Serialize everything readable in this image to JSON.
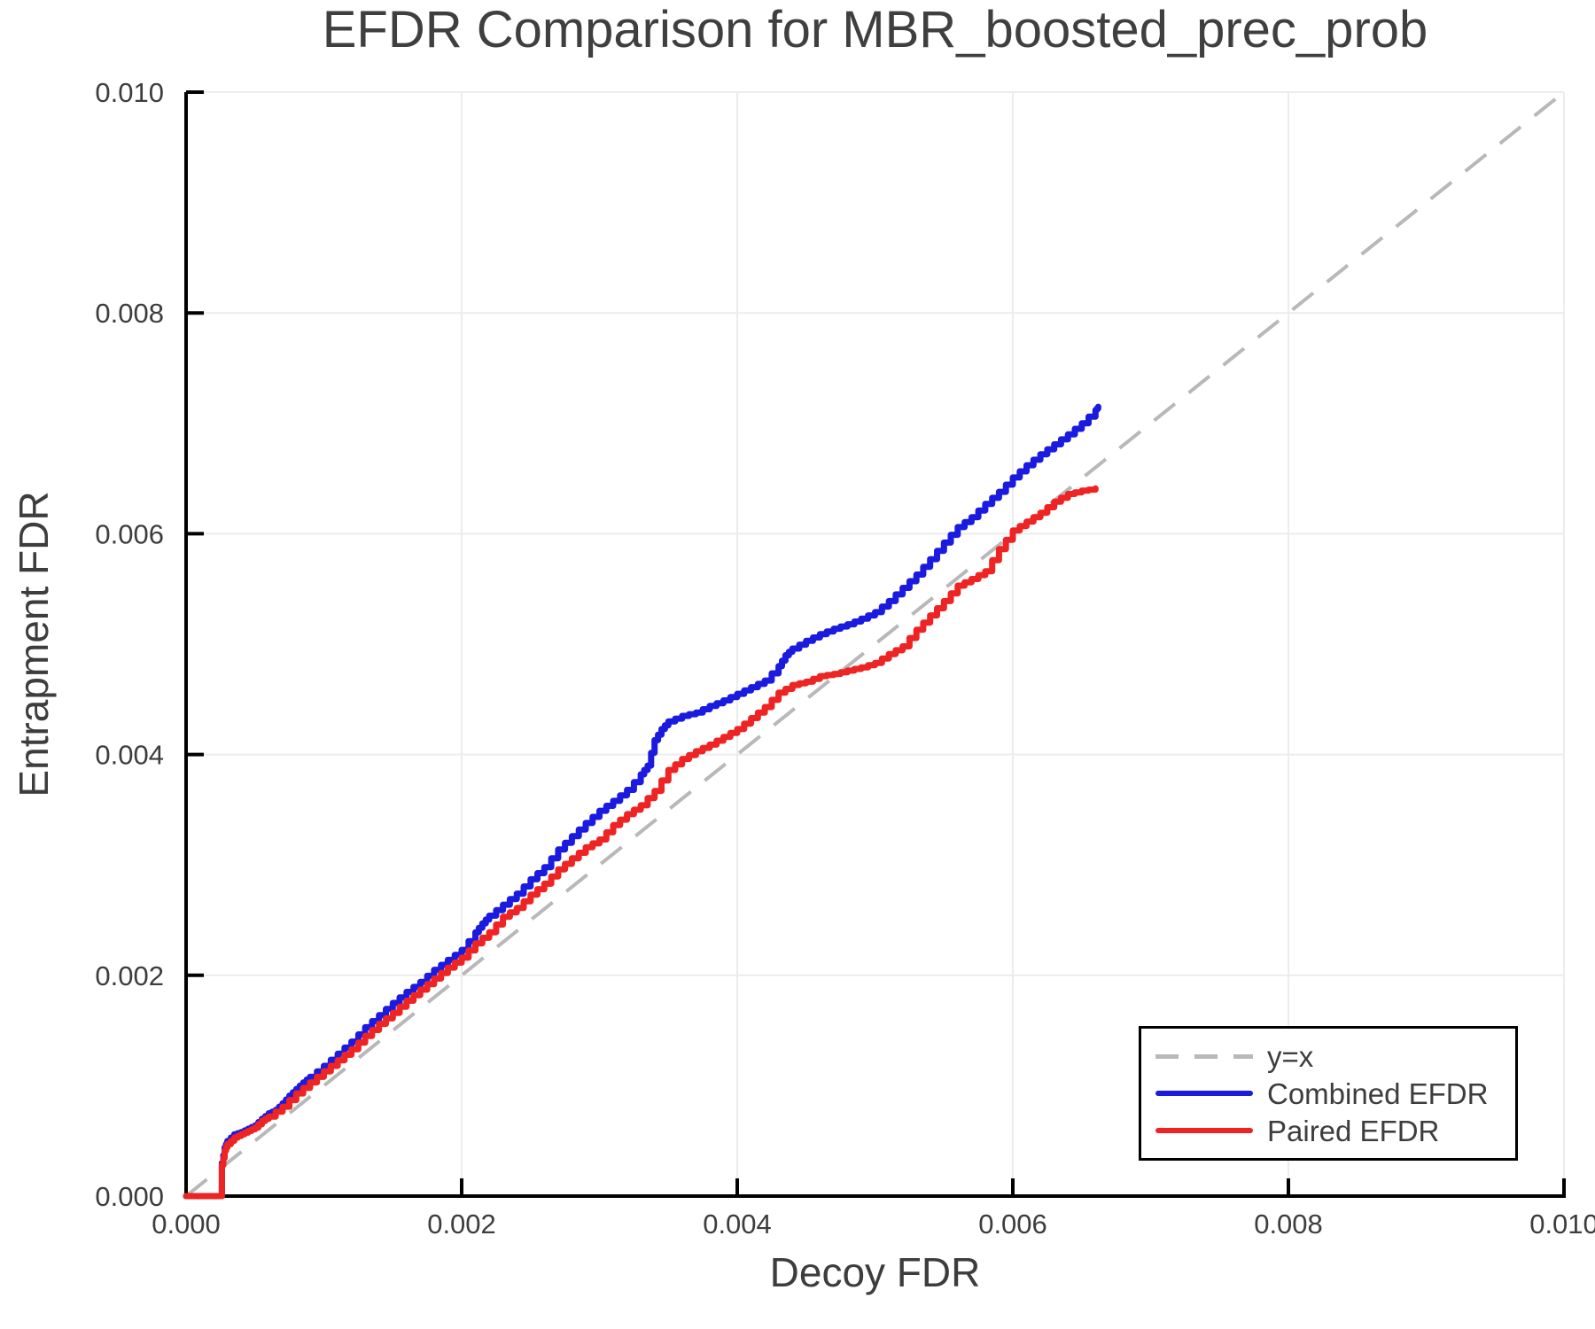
{
  "title": "EFDR Comparison for MBR_boosted_prec_prob",
  "colors": {
    "background": "#ffffff",
    "grid": "#ececec",
    "spine": "#000000",
    "tick_text": "#3d3d3d",
    "title_text": "#3f3f3f",
    "diagonal": "#b8b8b8",
    "combined": "#1b1be0",
    "paired": "#ee2424"
  },
  "chart_data": {
    "type": "line",
    "title": "EFDR Comparison for MBR_boosted_prec_prob",
    "xlabel": "Decoy FDR",
    "ylabel": "Entrapment FDR",
    "xlim": [
      0,
      0.01
    ],
    "ylim": [
      0,
      0.01
    ],
    "grid": true,
    "legend_position": "bottom-right",
    "xticks": {
      "values": [
        0,
        0.002,
        0.004,
        0.006,
        0.008,
        0.01
      ],
      "labels": [
        "0.000",
        "0.002",
        "0.004",
        "0.006",
        "0.008",
        "0.010"
      ]
    },
    "yticks": {
      "values": [
        0,
        0.002,
        0.004,
        0.006,
        0.008,
        0.01
      ],
      "labels": [
        "0.000",
        "0.002",
        "0.004",
        "0.006",
        "0.008",
        "0.010"
      ]
    },
    "series": [
      {
        "name": "y=x",
        "style": "dashed",
        "color": "#b8b8b8",
        "points": [
          [
            0,
            0
          ],
          [
            0.01,
            0.01
          ]
        ]
      },
      {
        "name": "Combined EFDR",
        "style": "solid",
        "color": "#1b1be0",
        "points": [
          [
            0,
            0
          ],
          [
            0.00026,
            0
          ],
          [
            0.00026,
            0.0003
          ],
          [
            0.00028,
            0.00044
          ],
          [
            0.0003,
            0.0005
          ],
          [
            0.00035,
            0.00056
          ],
          [
            0.0004,
            0.00058
          ],
          [
            0.00045,
            0.00061
          ],
          [
            0.0005,
            0.00064
          ],
          [
            0.00055,
            0.0007
          ],
          [
            0.0006,
            0.00075
          ],
          [
            0.00065,
            0.00078
          ],
          [
            0.0007,
            0.00084
          ],
          [
            0.00075,
            0.00091
          ],
          [
            0.0008,
            0.00097
          ],
          [
            0.00085,
            0.00103
          ],
          [
            0.0009,
            0.00108
          ],
          [
            0.001,
            0.00118
          ],
          [
            0.0011,
            0.00129
          ],
          [
            0.0012,
            0.0014
          ],
          [
            0.0013,
            0.00153
          ],
          [
            0.0014,
            0.00164
          ],
          [
            0.0015,
            0.00175
          ],
          [
            0.0016,
            0.00185
          ],
          [
            0.0017,
            0.00194
          ],
          [
            0.0018,
            0.00205
          ],
          [
            0.0019,
            0.00214
          ],
          [
            0.002,
            0.00223
          ],
          [
            0.0021,
            0.00239
          ],
          [
            0.00215,
            0.00247
          ],
          [
            0.0022,
            0.00254
          ],
          [
            0.0023,
            0.00264
          ],
          [
            0.0024,
            0.00274
          ],
          [
            0.0025,
            0.00287
          ],
          [
            0.0026,
            0.00298
          ],
          [
            0.0027,
            0.00314
          ],
          [
            0.0028,
            0.00326
          ],
          [
            0.0029,
            0.00338
          ],
          [
            0.003,
            0.00349
          ],
          [
            0.0031,
            0.00358
          ],
          [
            0.0032,
            0.00368
          ],
          [
            0.0033,
            0.00382
          ],
          [
            0.00335,
            0.0039
          ],
          [
            0.0034,
            0.00413
          ],
          [
            0.00345,
            0.00423
          ],
          [
            0.0035,
            0.0043
          ],
          [
            0.0036,
            0.00435
          ],
          [
            0.0037,
            0.00438
          ],
          [
            0.0038,
            0.00444
          ],
          [
            0.0039,
            0.00449
          ],
          [
            0.004,
            0.00455
          ],
          [
            0.0041,
            0.00461
          ],
          [
            0.0042,
            0.00467
          ],
          [
            0.0043,
            0.0048
          ],
          [
            0.00435,
            0.0049
          ],
          [
            0.0044,
            0.00496
          ],
          [
            0.0045,
            0.00503
          ],
          [
            0.0046,
            0.00509
          ],
          [
            0.0047,
            0.00514
          ],
          [
            0.0048,
            0.00518
          ],
          [
            0.0049,
            0.00523
          ],
          [
            0.005,
            0.00529
          ],
          [
            0.0051,
            0.00539
          ],
          [
            0.0052,
            0.00551
          ],
          [
            0.0053,
            0.00563
          ],
          [
            0.0054,
            0.00577
          ],
          [
            0.0055,
            0.00592
          ],
          [
            0.0056,
            0.00606
          ],
          [
            0.0057,
            0.00615
          ],
          [
            0.0058,
            0.00627
          ],
          [
            0.0059,
            0.00638
          ],
          [
            0.006,
            0.00651
          ],
          [
            0.0061,
            0.00662
          ],
          [
            0.0062,
            0.00672
          ],
          [
            0.0063,
            0.00681
          ],
          [
            0.0064,
            0.0069
          ],
          [
            0.0065,
            0.007
          ],
          [
            0.0066,
            0.00712
          ],
          [
            0.00662,
            0.00715
          ]
        ]
      },
      {
        "name": "Paired EFDR",
        "style": "solid",
        "color": "#ee2424",
        "points": [
          [
            0,
            0
          ],
          [
            0.00026,
            0
          ],
          [
            0.00026,
            0.00028
          ],
          [
            0.00028,
            0.00041
          ],
          [
            0.0003,
            0.00047
          ],
          [
            0.00035,
            0.00053
          ],
          [
            0.0004,
            0.00056
          ],
          [
            0.00045,
            0.00059
          ],
          [
            0.0005,
            0.00062
          ],
          [
            0.00055,
            0.00068
          ],
          [
            0.0006,
            0.00072
          ],
          [
            0.0007,
            0.00081
          ],
          [
            0.0008,
            0.00093
          ],
          [
            0.0009,
            0.00103
          ],
          [
            0.001,
            0.00113
          ],
          [
            0.0011,
            0.00123
          ],
          [
            0.0012,
            0.00133
          ],
          [
            0.0013,
            0.00145
          ],
          [
            0.0014,
            0.00156
          ],
          [
            0.0015,
            0.00166
          ],
          [
            0.0016,
            0.00177
          ],
          [
            0.0017,
            0.00187
          ],
          [
            0.0018,
            0.00197
          ],
          [
            0.0019,
            0.00207
          ],
          [
            0.002,
            0.00216
          ],
          [
            0.0021,
            0.00229
          ],
          [
            0.0022,
            0.00239
          ],
          [
            0.0023,
            0.00253
          ],
          [
            0.0024,
            0.00261
          ],
          [
            0.0025,
            0.00273
          ],
          [
            0.0026,
            0.00283
          ],
          [
            0.0027,
            0.00296
          ],
          [
            0.0028,
            0.00306
          ],
          [
            0.0029,
            0.00316
          ],
          [
            0.003,
            0.00323
          ],
          [
            0.0031,
            0.00336
          ],
          [
            0.0032,
            0.00346
          ],
          [
            0.0033,
            0.00354
          ],
          [
            0.0034,
            0.00367
          ],
          [
            0.0035,
            0.00386
          ],
          [
            0.0036,
            0.00396
          ],
          [
            0.0037,
            0.00403
          ],
          [
            0.0038,
            0.00409
          ],
          [
            0.0039,
            0.00416
          ],
          [
            0.004,
            0.00423
          ],
          [
            0.0041,
            0.00433
          ],
          [
            0.0042,
            0.00443
          ],
          [
            0.0043,
            0.00456
          ],
          [
            0.0044,
            0.00463
          ],
          [
            0.0045,
            0.00466
          ],
          [
            0.0046,
            0.00471
          ],
          [
            0.0047,
            0.00473
          ],
          [
            0.0048,
            0.00476
          ],
          [
            0.0049,
            0.00479
          ],
          [
            0.005,
            0.00483
          ],
          [
            0.0051,
            0.00491
          ],
          [
            0.0052,
            0.00498
          ],
          [
            0.0053,
            0.00513
          ],
          [
            0.0054,
            0.00526
          ],
          [
            0.0055,
            0.00539
          ],
          [
            0.0056,
            0.00553
          ],
          [
            0.0057,
            0.00559
          ],
          [
            0.0058,
            0.00566
          ],
          [
            0.0059,
            0.00586
          ],
          [
            0.006,
            0.00603
          ],
          [
            0.0061,
            0.00611
          ],
          [
            0.0062,
            0.00619
          ],
          [
            0.0063,
            0.00629
          ],
          [
            0.0064,
            0.00636
          ],
          [
            0.0065,
            0.00639
          ],
          [
            0.0066,
            0.00641
          ]
        ]
      }
    ]
  }
}
